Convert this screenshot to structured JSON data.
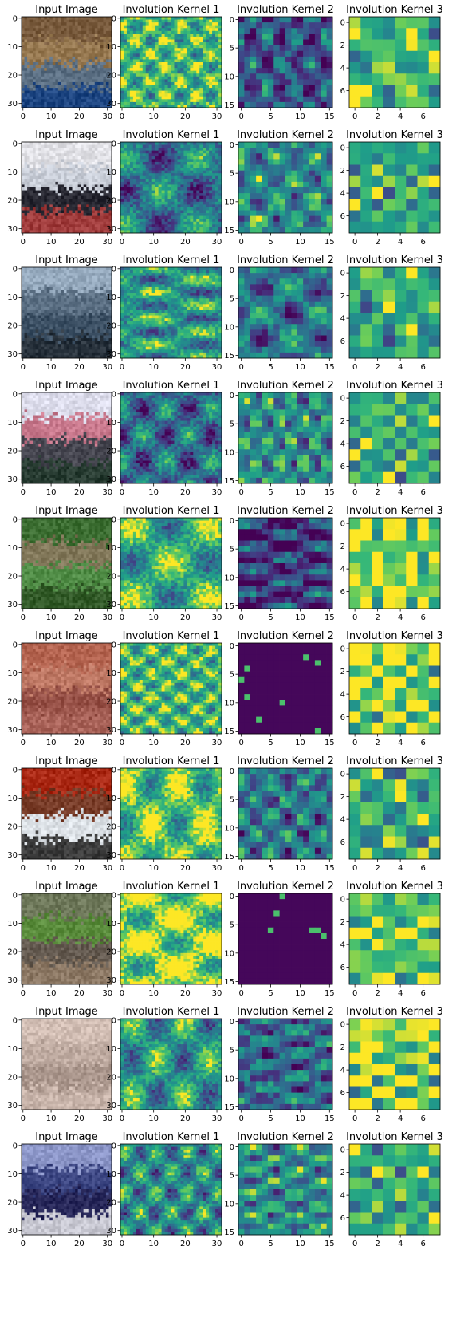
{
  "chart_data": {
    "type": "heatmap",
    "layout": "grid",
    "rows": 10,
    "columns": [
      {
        "title": "Input Image",
        "grid_size": 32,
        "x_ticks": [
          0,
          10,
          20,
          30
        ],
        "y_ticks": [
          0,
          10,
          20,
          30
        ],
        "content": "cifar-10 rgb image"
      },
      {
        "title": "Involution Kernel 1",
        "grid_size": 32,
        "x_ticks": [
          0,
          10,
          20,
          30
        ],
        "y_ticks": [
          0,
          10,
          20,
          30
        ],
        "colormap": "viridis"
      },
      {
        "title": "Involution Kernel 2",
        "grid_size": 16,
        "x_ticks": [
          0,
          5,
          10,
          15
        ],
        "y_ticks": [
          0,
          5,
          10,
          15
        ],
        "colormap": "viridis"
      },
      {
        "title": "Involution Kernel 3",
        "grid_size": 8,
        "x_ticks": [
          0,
          2,
          4,
          6
        ],
        "y_ticks": [
          0,
          2,
          4,
          6
        ],
        "colormap": "viridis"
      }
    ],
    "colors": {
      "viridis_low": "#440154",
      "viridis_mid": "#21918c",
      "viridis_high": "#fde725"
    }
  }
}
